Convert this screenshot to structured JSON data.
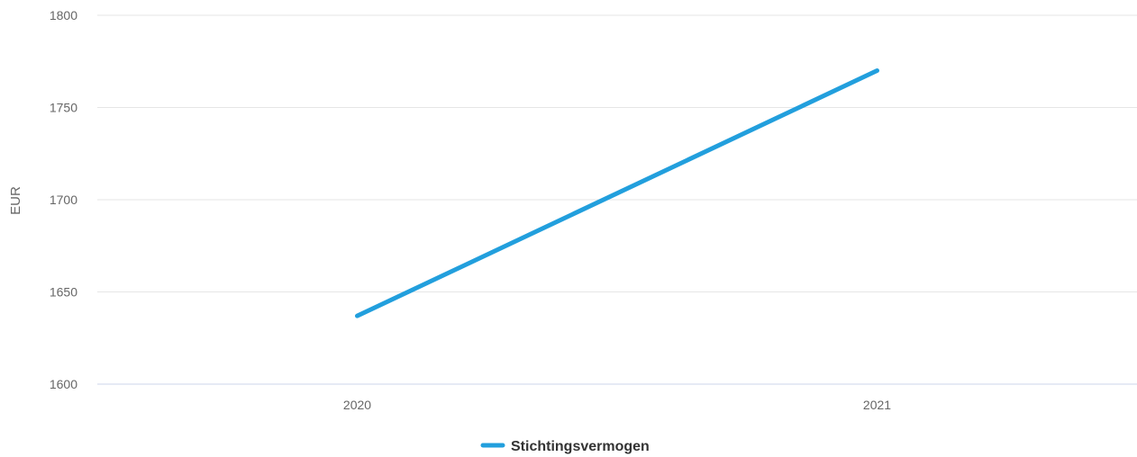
{
  "chart_data": {
    "type": "line",
    "categories": [
      "2020",
      "2021"
    ],
    "series": [
      {
        "name": "Stichtingsvermogen",
        "values": [
          1637,
          1770
        ],
        "color": "#229fdd"
      }
    ],
    "ylabel": "EUR",
    "ylim": [
      1600,
      1800
    ],
    "yticks": [
      "1600",
      "1650",
      "1700",
      "1750",
      "1800"
    ],
    "grid": true,
    "legend_position": "bottom-center"
  }
}
